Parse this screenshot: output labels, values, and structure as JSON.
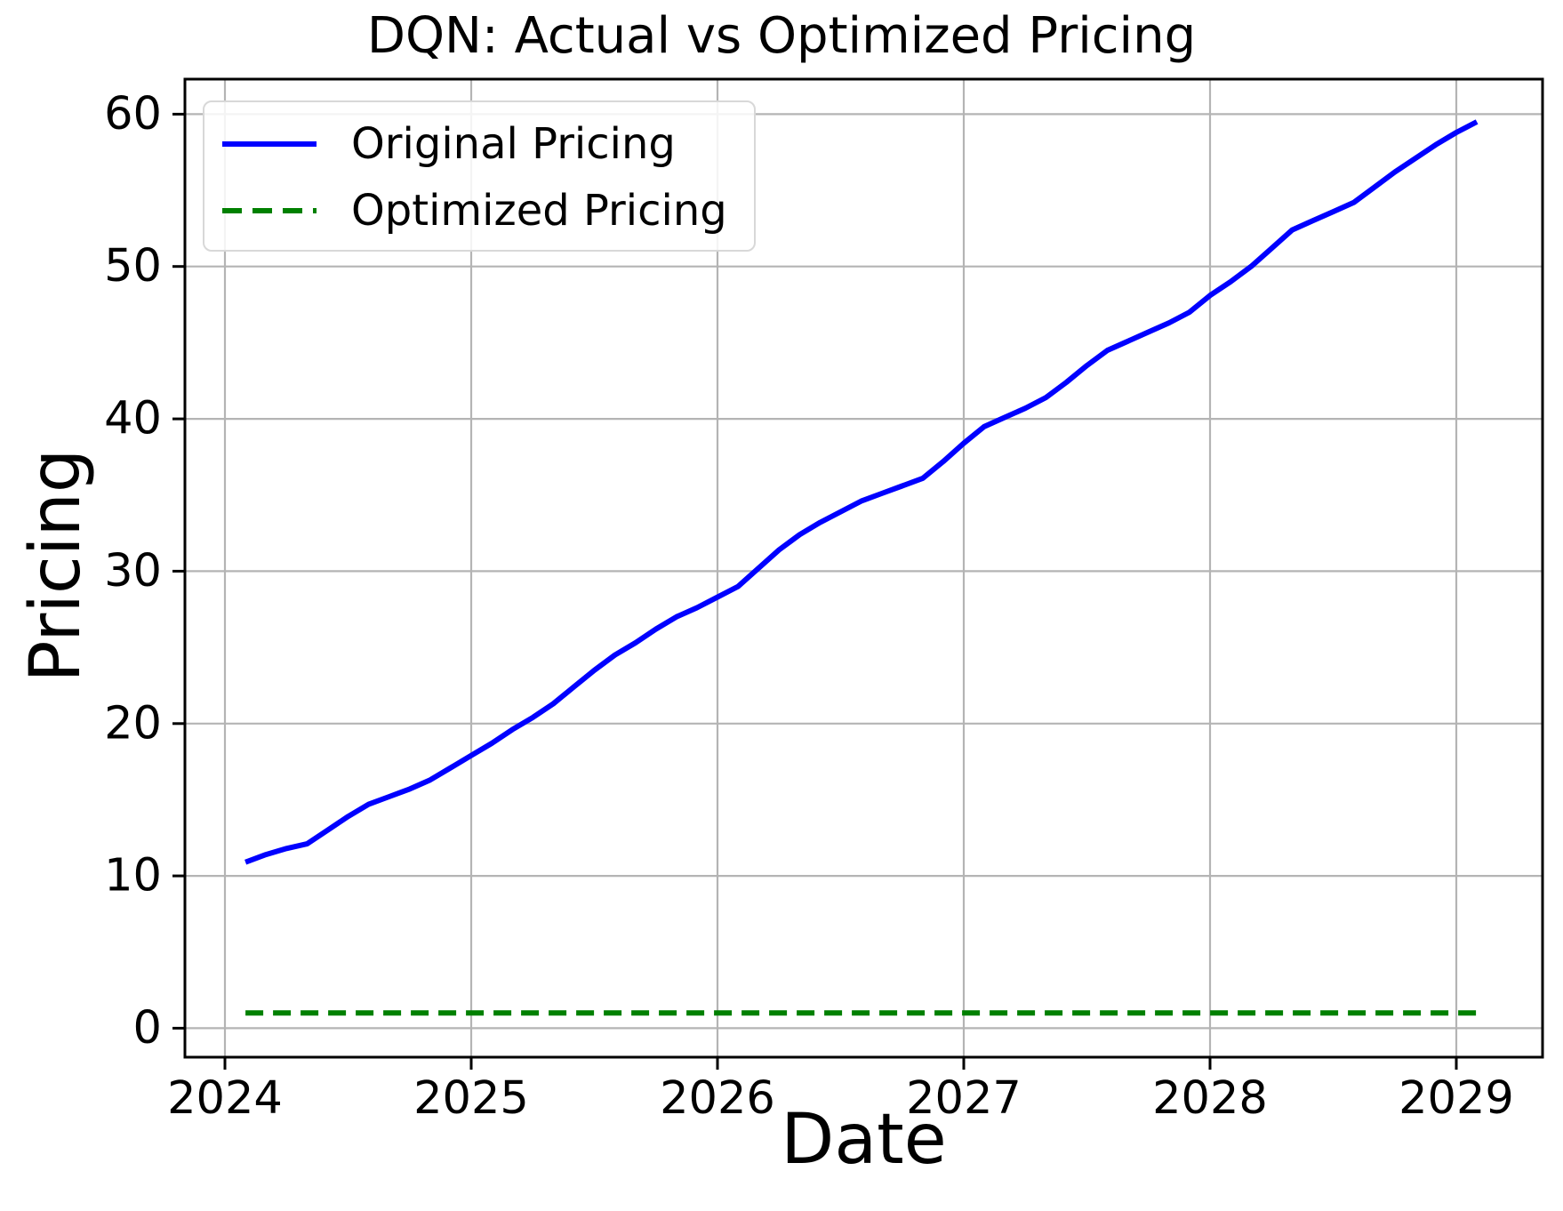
{
  "title": "DQN: Actual vs Optimized Pricing",
  "chart_data": {
    "type": "line",
    "title": "DQN: Actual vs Optimized Pricing",
    "xlabel": "Date",
    "ylabel": "Pricing",
    "x_frequency": "monthly",
    "x_start": 2024.0833,
    "x_end": 2029.0833,
    "x_step": 0.0833333,
    "xticks": [
      2024,
      2025,
      2026,
      2027,
      2028,
      2029
    ],
    "xtick_labels": [
      "2024",
      "2025",
      "2026",
      "2027",
      "2028",
      "2029"
    ],
    "yticks": [
      0,
      10,
      20,
      30,
      40,
      50,
      60
    ],
    "ytick_labels": [
      "0",
      "10",
      "20",
      "30",
      "40",
      "50",
      "60"
    ],
    "xlim": [
      2023.8375,
      2029.35
    ],
    "ylim": [
      -1.9,
      62.3
    ],
    "grid": true,
    "legend_position": "upper left",
    "colors": {
      "grid": "#b4b4b4",
      "spine": "#000000",
      "background": "#ffffff"
    },
    "series": [
      {
        "name": "Original Pricing",
        "color": "#0000ff",
        "style": "solid",
        "values": [
          10.9,
          11.4,
          11.8,
          12.1,
          13.0,
          13.9,
          14.7,
          15.2,
          15.7,
          16.3,
          17.1,
          17.9,
          18.7,
          19.6,
          20.4,
          21.3,
          22.4,
          23.5,
          24.5,
          25.3,
          26.2,
          27.0,
          27.6,
          28.3,
          29.0,
          30.2,
          31.4,
          32.4,
          33.2,
          33.9,
          34.6,
          35.1,
          35.6,
          36.1,
          37.2,
          38.4,
          39.5,
          40.1,
          40.7,
          41.4,
          42.4,
          43.5,
          44.5,
          45.1,
          45.7,
          46.3,
          47.0,
          48.1,
          49.0,
          50.0,
          51.2,
          52.4,
          53.0,
          53.6,
          54.2,
          55.2,
          56.2,
          57.1,
          58.0,
          58.8,
          59.5
        ]
      },
      {
        "name": "Optimized Pricing",
        "color": "#008000",
        "style": "dashed",
        "constant": 1.0
      }
    ]
  },
  "legend": {
    "items": [
      {
        "label": "Original Pricing"
      },
      {
        "label": "Optimized Pricing"
      }
    ]
  }
}
